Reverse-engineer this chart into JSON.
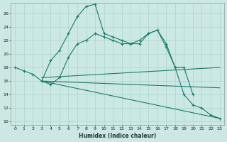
{
  "xlabel": "Humidex (Indice chaleur)",
  "bg_color": "#cce8e4",
  "grid_color": "#aad4cc",
  "line_color": "#1a7a6e",
  "xlim": [
    -0.5,
    23.5
  ],
  "ylim": [
    9.5,
    27.5
  ],
  "yticks": [
    10,
    12,
    14,
    16,
    18,
    20,
    22,
    24,
    26
  ],
  "xticks": [
    0,
    1,
    2,
    3,
    4,
    5,
    6,
    7,
    8,
    9,
    10,
    11,
    12,
    13,
    14,
    15,
    16,
    17,
    18,
    19,
    20,
    21,
    22,
    23
  ],
  "line1_x": [
    0,
    1,
    2,
    3,
    4,
    5,
    6,
    7,
    8,
    9,
    10,
    11,
    12,
    13,
    14,
    15,
    16,
    17,
    18,
    19,
    20
  ],
  "line1_y": [
    18,
    17.5,
    17,
    16,
    19,
    20.5,
    23,
    25.5,
    27,
    27.3,
    23,
    22.5,
    22,
    21.5,
    21.5,
    23,
    23.5,
    21,
    18,
    18,
    14
  ],
  "line2_x": [
    3,
    4,
    5,
    6,
    7,
    8,
    9,
    10,
    11,
    12,
    13,
    14,
    15,
    16,
    17,
    18,
    19,
    20,
    21,
    22,
    23
  ],
  "line2_y": [
    16,
    15.5,
    16.5,
    19.5,
    21.5,
    22,
    23,
    22.5,
    22,
    21.5,
    21.5,
    22,
    23,
    23.5,
    21.5,
    18,
    14,
    12.5,
    12,
    11,
    10.5
  ],
  "line3_x": [
    3,
    23
  ],
  "line3_y": [
    16.5,
    18
  ],
  "line4_x": [
    3,
    23
  ],
  "line4_y": [
    16,
    15
  ],
  "line5_x": [
    3,
    23
  ],
  "line5_y": [
    16,
    10.5
  ]
}
